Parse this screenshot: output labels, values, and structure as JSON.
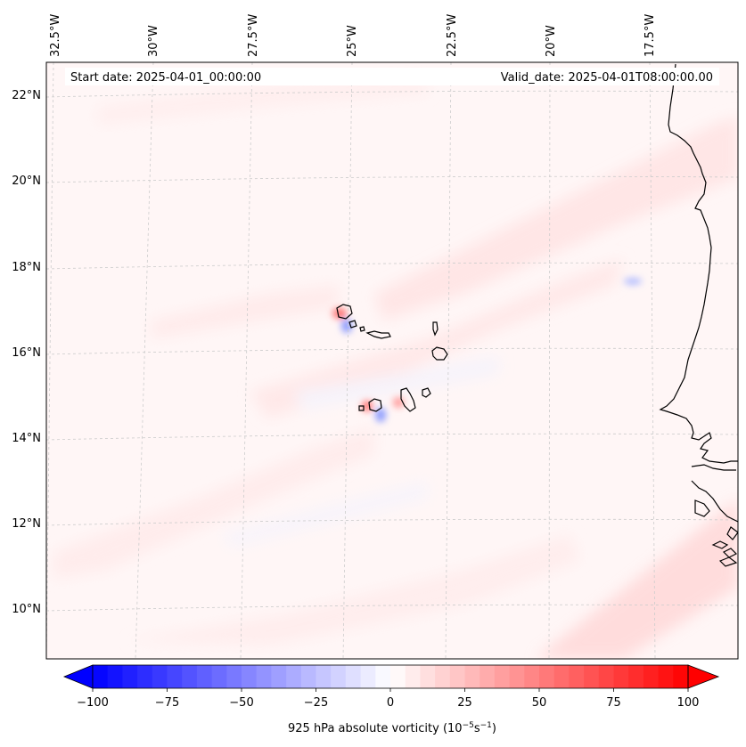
{
  "map": {
    "start_date": "Start date: 2025-04-01_00:00:00",
    "valid_date": "Valid_date: 2025-04-01T08:00:00.00",
    "lon_labels": [
      "32.5°W",
      "30°W",
      "27.5°W",
      "25°W",
      "22.5°W",
      "20°W",
      "17.5°W"
    ],
    "lat_labels": [
      "22°N",
      "20°N",
      "18°N",
      "16°N",
      "14°N",
      "12°N",
      "10°N"
    ],
    "background_color": "#fff6f6",
    "coastline_color": "#000000",
    "gridline_color": "#cccccc"
  },
  "colorbar": {
    "ticks": [
      "−100",
      "−75",
      "−50",
      "−25",
      "0",
      "25",
      "50",
      "75",
      "100"
    ],
    "min": -100,
    "max": 100,
    "steps": 40,
    "label_prefix": "925 hPa absolute vorticity (10",
    "label_exp1": "−5",
    "label_mid": "s",
    "label_exp2": "−1",
    "label_suffix": ")",
    "color_negative": "#0000ff",
    "color_zero": "#ffffff",
    "color_positive": "#ff0000"
  }
}
